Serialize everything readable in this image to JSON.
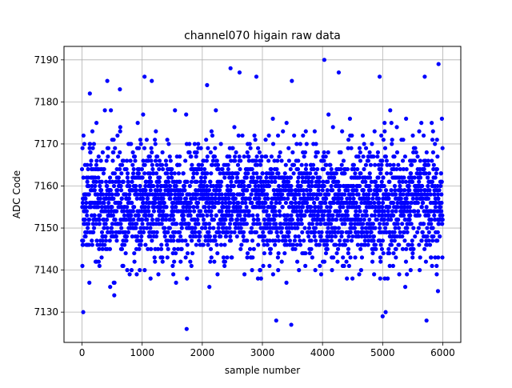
{
  "chart_data": {
    "type": "scatter",
    "title": "channel070 higain raw data",
    "xlabel": "sample number",
    "ylabel": "ADC Code",
    "xlim": [
      -300,
      6300
    ],
    "ylim": [
      7122.8,
      7193.2
    ],
    "xticks": [
      0,
      1000,
      2000,
      3000,
      4000,
      5000,
      6000
    ],
    "yticks": [
      7130,
      7140,
      7150,
      7160,
      7170,
      7180,
      7190
    ],
    "grid": true,
    "marker_color": "#0000ff",
    "n_samples": 6000,
    "distribution": {
      "mean": 7156,
      "std": 7.5,
      "min": 7126,
      "max": 7190
    },
    "notable_points": [
      {
        "x": 20,
        "y": 7130
      },
      {
        "x": 130,
        "y": 7182
      },
      {
        "x": 420,
        "y": 7185
      },
      {
        "x": 630,
        "y": 7183
      },
      {
        "x": 1040,
        "y": 7186
      },
      {
        "x": 1160,
        "y": 7185
      },
      {
        "x": 1740,
        "y": 7126
      },
      {
        "x": 2080,
        "y": 7184
      },
      {
        "x": 2470,
        "y": 7188
      },
      {
        "x": 2620,
        "y": 7187
      },
      {
        "x": 2900,
        "y": 7186
      },
      {
        "x": 3230,
        "y": 7128
      },
      {
        "x": 3480,
        "y": 7127
      },
      {
        "x": 3490,
        "y": 7185
      },
      {
        "x": 4030,
        "y": 7190
      },
      {
        "x": 4270,
        "y": 7187
      },
      {
        "x": 4950,
        "y": 7186
      },
      {
        "x": 5000,
        "y": 7129
      },
      {
        "x": 5050,
        "y": 7130
      },
      {
        "x": 5700,
        "y": 7186
      },
      {
        "x": 5730,
        "y": 7128
      },
      {
        "x": 5930,
        "y": 7189
      },
      {
        "x": 5920,
        "y": 7135
      }
    ]
  }
}
